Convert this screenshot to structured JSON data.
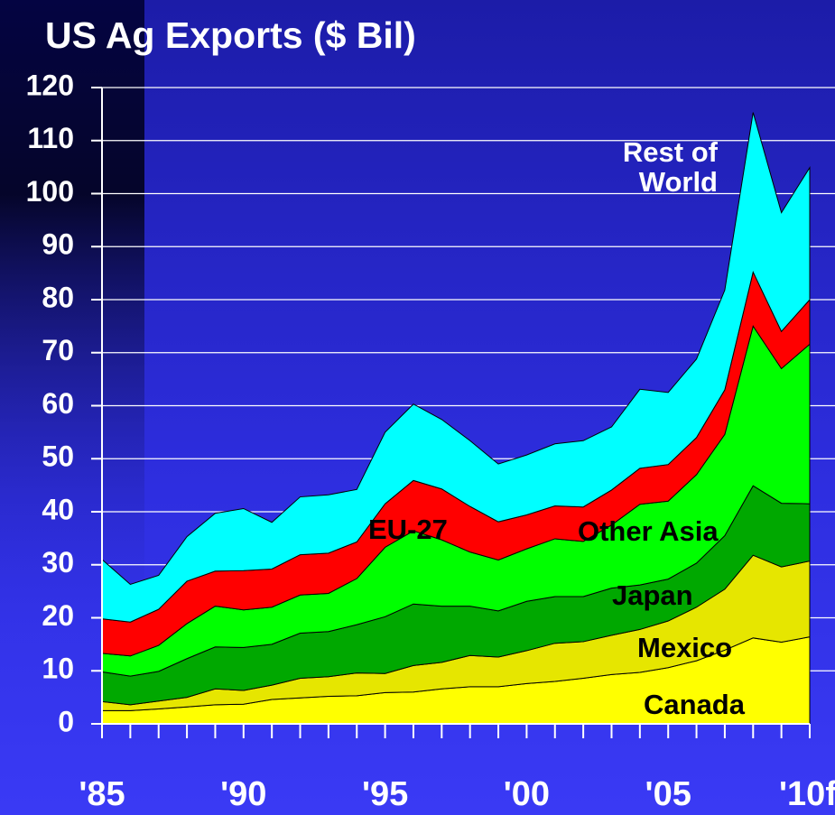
{
  "chart_data": {
    "type": "stacked-area",
    "title": "US Ag Exports ($ Bil)",
    "categories": [
      "'85",
      null,
      null,
      null,
      null,
      "'90",
      null,
      null,
      null,
      null,
      "'95",
      null,
      null,
      null,
      null,
      "'00",
      null,
      null,
      null,
      null,
      "'05",
      null,
      null,
      null,
      null,
      "'10f"
    ],
    "series": [
      {
        "name": "Canada",
        "color": "#ffff00",
        "values": [
          2.5,
          2.5,
          2.8,
          3.2,
          3.6,
          3.7,
          4.6,
          4.9,
          5.2,
          5.3,
          5.9,
          6.0,
          6.6,
          7.0,
          7.0,
          7.6,
          8.0,
          8.6,
          9.3,
          9.7,
          10.6,
          11.9,
          13.9,
          16.2,
          15.4,
          16.4
        ]
      },
      {
        "name": "Mexico",
        "color": "#e6e600",
        "values": [
          1.7,
          1.1,
          1.5,
          1.8,
          3.0,
          2.6,
          2.7,
          3.7,
          3.7,
          4.3,
          3.6,
          5.0,
          5.0,
          5.9,
          5.6,
          6.2,
          7.2,
          6.9,
          7.4,
          8.1,
          8.8,
          10.1,
          11.5,
          15.6,
          14.2,
          14.3
        ]
      },
      {
        "name": "Japan",
        "color": "#00a800",
        "values": [
          5.6,
          5.4,
          5.6,
          7.3,
          7.9,
          8.1,
          7.7,
          8.5,
          8.5,
          9.1,
          10.7,
          11.6,
          10.6,
          9.3,
          8.7,
          9.3,
          8.8,
          8.5,
          8.9,
          8.4,
          7.9,
          8.3,
          10.1,
          13.1,
          12.0,
          10.8
        ]
      },
      {
        "name": "Other Asia",
        "color": "#00ff00",
        "values": [
          3.5,
          3.8,
          4.9,
          6.6,
          7.7,
          7.1,
          7.0,
          7.2,
          7.2,
          8.7,
          13.1,
          13.8,
          12.5,
          10.2,
          9.6,
          9.9,
          10.9,
          10.4,
          11.9,
          15.2,
          14.7,
          16.7,
          19.1,
          30.1,
          25.4,
          30.1
        ]
      },
      {
        "name": "EU-27",
        "color": "#ff0000",
        "values": [
          6.5,
          6.4,
          6.8,
          8.0,
          6.6,
          7.4,
          7.2,
          7.6,
          7.6,
          6.9,
          8.2,
          9.5,
          9.6,
          8.6,
          7.2,
          6.4,
          6.2,
          6.5,
          6.6,
          6.8,
          6.9,
          7.0,
          8.4,
          10.2,
          7.0,
          8.4
        ]
      },
      {
        "name": "Rest of World",
        "color": "#00ffff",
        "values": [
          11.2,
          7.1,
          6.4,
          8.4,
          10.9,
          11.7,
          8.8,
          10.9,
          11.0,
          9.9,
          13.5,
          14.4,
          13.1,
          12.4,
          10.9,
          11.3,
          11.7,
          12.5,
          11.9,
          14.9,
          13.6,
          14.8,
          18.8,
          30.1,
          22.4,
          24.9
        ]
      }
    ],
    "ylim": [
      0,
      120
    ],
    "yticks": [
      0,
      10,
      20,
      30,
      40,
      50,
      60,
      70,
      80,
      90,
      100,
      110,
      120
    ],
    "grid": true
  }
}
